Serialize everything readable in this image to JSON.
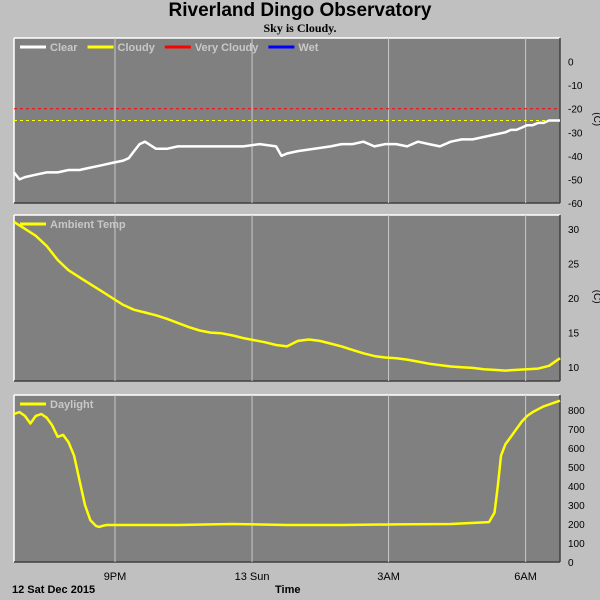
{
  "page": {
    "title": "Riverland Dingo Observatory",
    "subtitle": "Sky is Cloudy.",
    "date_label": "12 Sat Dec 2015",
    "time_label": "Time"
  },
  "chart_data": [
    {
      "type": "line",
      "id": "sky",
      "xlim": [
        0,
        100
      ],
      "ylim": [
        -60,
        10
      ],
      "yticks": [
        0,
        -10,
        -20,
        -30,
        -40,
        -50,
        -60
      ],
      "ylabel": "(C)",
      "legend": [
        {
          "name": "Clear",
          "color": "#ffffff"
        },
        {
          "name": "Cloudy",
          "color": "#ffff00"
        },
        {
          "name": "Very Cloudy",
          "color": "#ff0000"
        },
        {
          "name": "Wet",
          "color": "#0000ff"
        }
      ],
      "thresholds": [
        {
          "y": -20,
          "color": "#ff0000"
        },
        {
          "y": -25,
          "color": "#ffff00"
        }
      ],
      "series": [
        {
          "name": "Clear",
          "color": "#ffffff",
          "x": [
            0,
            1,
            2,
            4,
            6,
            8,
            10,
            12,
            14,
            16,
            18,
            20,
            21,
            22,
            23,
            24,
            26,
            28,
            30,
            34,
            38,
            42,
            45,
            48,
            49,
            50,
            52,
            55,
            58,
            60,
            62,
            64,
            66,
            68,
            70,
            72,
            74,
            76,
            78,
            80,
            82,
            84,
            86,
            88,
            90,
            91,
            92,
            93,
            94,
            95,
            96,
            97,
            98,
            99,
            100
          ],
          "y": [
            -47,
            -50,
            -49,
            -48,
            -47,
            -47,
            -46,
            -46,
            -45,
            -44,
            -43,
            -42,
            -41,
            -38,
            -35,
            -34,
            -37,
            -37,
            -36,
            -36,
            -36,
            -36,
            -35,
            -36,
            -40,
            -39,
            -38,
            -37,
            -36,
            -35,
            -35,
            -34,
            -36,
            -35,
            -35,
            -36,
            -34,
            -35,
            -36,
            -34,
            -33,
            -33,
            -32,
            -31,
            -30,
            -29,
            -29,
            -28,
            -27,
            -27,
            -26,
            -26,
            -25,
            -25,
            -25
          ]
        }
      ]
    },
    {
      "type": "line",
      "id": "ambient",
      "xlim": [
        0,
        100
      ],
      "ylim": [
        8,
        32
      ],
      "yticks": [
        30,
        25,
        20,
        15,
        10
      ],
      "ylabel": "(C)",
      "legend": [
        {
          "name": "Ambient Temp",
          "color": "#ffff00"
        }
      ],
      "series": [
        {
          "name": "Ambient Temp",
          "color": "#ffff00",
          "x": [
            0,
            2,
            4,
            6,
            8,
            10,
            12,
            14,
            16,
            18,
            20,
            22,
            24,
            26,
            28,
            30,
            32,
            34,
            36,
            38,
            40,
            42,
            44,
            46,
            48,
            50,
            52,
            54,
            56,
            58,
            60,
            62,
            64,
            66,
            68,
            70,
            72,
            74,
            76,
            78,
            80,
            82,
            84,
            86,
            88,
            90,
            92,
            94,
            96,
            98,
            100
          ],
          "y": [
            31,
            30,
            29,
            27.5,
            25.5,
            24,
            23,
            22,
            21,
            20,
            19,
            18.3,
            17.9,
            17.5,
            17,
            16.4,
            15.8,
            15.3,
            15,
            14.9,
            14.6,
            14.2,
            13.9,
            13.6,
            13.2,
            13,
            13.8,
            14,
            13.8,
            13.4,
            13,
            12.5,
            12,
            11.6,
            11.4,
            11.3,
            11.1,
            10.8,
            10.5,
            10.3,
            10.1,
            10,
            9.9,
            9.7,
            9.6,
            9.5,
            9.6,
            9.7,
            9.8,
            10.2,
            11.3
          ]
        }
      ]
    },
    {
      "type": "line",
      "id": "daylight",
      "xlim": [
        0,
        100
      ],
      "ylim": [
        0,
        880
      ],
      "yticks": [
        800,
        700,
        600,
        500,
        400,
        300,
        200,
        100,
        0
      ],
      "ylabel": "",
      "legend": [
        {
          "name": "Daylight",
          "color": "#ffff00"
        }
      ],
      "series": [
        {
          "name": "Daylight",
          "color": "#ffff00",
          "x": [
            0,
            1,
            2,
            3,
            4,
            5,
            6,
            7,
            8,
            9,
            10,
            11,
            12,
            13,
            14,
            15,
            15.6,
            16.2,
            17,
            18,
            20,
            30,
            40,
            50,
            60,
            70,
            80,
            87,
            88,
            88.6,
            89.2,
            90,
            91,
            92,
            93,
            94,
            95,
            96,
            97,
            98,
            99,
            100
          ],
          "y": [
            780,
            790,
            770,
            730,
            770,
            780,
            760,
            720,
            660,
            670,
            630,
            560,
            430,
            300,
            220,
            190,
            185,
            190,
            195,
            195,
            195,
            195,
            200,
            195,
            195,
            198,
            200,
            210,
            260,
            400,
            560,
            620,
            660,
            700,
            740,
            770,
            790,
            805,
            820,
            830,
            840,
            850
          ]
        }
      ]
    }
  ],
  "x_axis": {
    "ticks": [
      {
        "x": 18.5,
        "label": "9PM"
      },
      {
        "x": 43.6,
        "label": "13 Sun"
      },
      {
        "x": 68.6,
        "label": "3AM"
      },
      {
        "x": 93.7,
        "label": "6AM"
      }
    ]
  }
}
